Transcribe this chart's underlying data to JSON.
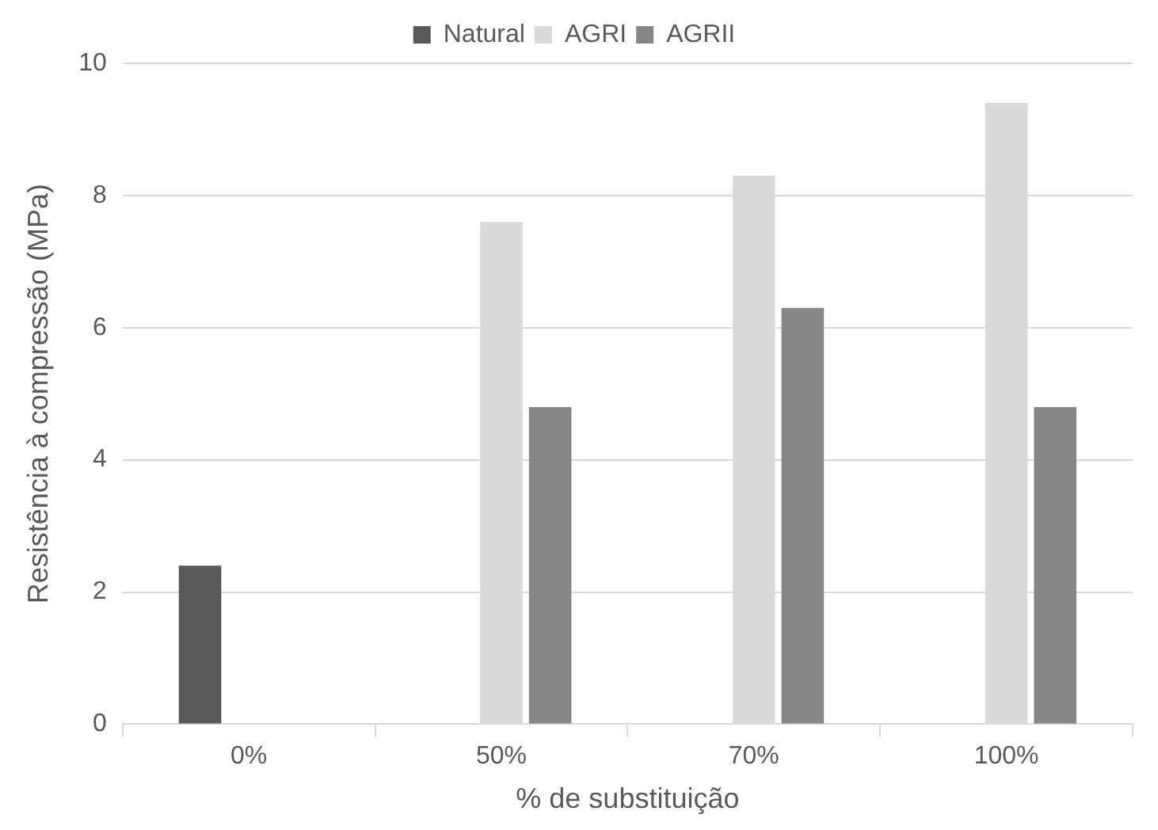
{
  "chart_data": {
    "type": "bar",
    "xlabel": "% de substituição",
    "ylabel": "Resistência à compressão (MPa)",
    "categories": [
      "0%",
      "50%",
      "70%",
      "100%"
    ],
    "series": [
      {
        "name": "Natural",
        "color": "#595959",
        "values": [
          2.4,
          null,
          null,
          null
        ]
      },
      {
        "name": "AGRI",
        "color": "#d9d9d9",
        "values": [
          null,
          7.6,
          8.3,
          9.4
        ]
      },
      {
        "name": "AGRII",
        "color": "#878787",
        "values": [
          null,
          4.8,
          6.3,
          4.8
        ]
      }
    ],
    "ylim": [
      0,
      10
    ],
    "yticks": [
      0,
      2,
      4,
      6,
      8,
      10
    ],
    "grid": "y",
    "legend": "top"
  }
}
